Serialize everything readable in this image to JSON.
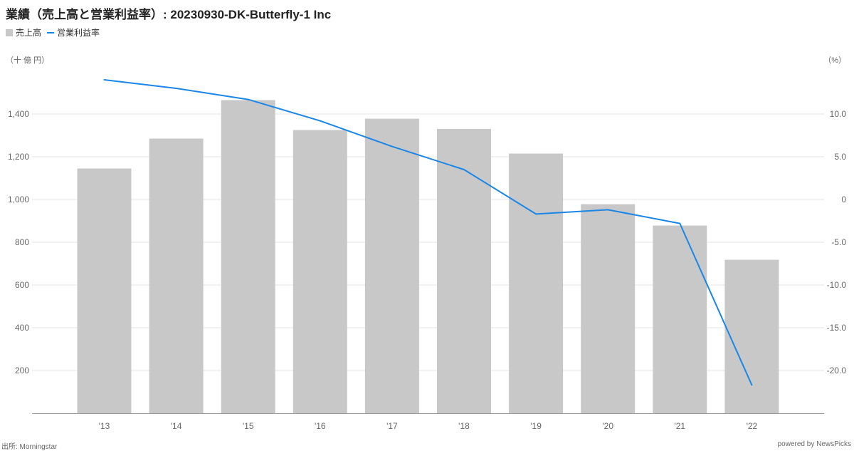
{
  "header": {
    "title": "業績（売上高と営業利益率）: 20230930-DK-Butterfly-1 Inc"
  },
  "footer": {
    "source": "出所: Morningstar",
    "credit": "powered by NewsPicks"
  },
  "colors": {
    "bar": "#c8c8c8",
    "line": "#1a86e8",
    "grid": "#e6e6e6",
    "axis": "#999999"
  },
  "chart_data": {
    "type": "bar+line",
    "categories": [
      "'13",
      "'14",
      "'15",
      "'16",
      "'17",
      "'18",
      "'19",
      "'20",
      "'21",
      "'22"
    ],
    "series": [
      {
        "name": "売上高",
        "type": "bar",
        "axis": "left",
        "values": [
          1145,
          1285,
          1465,
          1325,
          1378,
          1330,
          1215,
          978,
          878,
          718
        ]
      },
      {
        "name": "営業利益率",
        "type": "line",
        "axis": "right",
        "values": [
          14.0,
          13.0,
          11.7,
          9.2,
          6.2,
          3.5,
          -1.7,
          -1.2,
          -2.8,
          -21.7
        ]
      }
    ],
    "y_left": {
      "unit_label": "（十 億 円）",
      "range": [
        0,
        1600
      ],
      "ticks": [
        200,
        400,
        600,
        800,
        1000,
        1200,
        1400
      ],
      "tick_labels": [
        "200",
        "400",
        "600",
        "800",
        "1,000",
        "1,200",
        "1,400"
      ]
    },
    "y_right": {
      "unit_label": "（%）",
      "range": [
        -25,
        15
      ],
      "ticks": [
        -20,
        -15,
        -10,
        -5,
        0,
        5,
        10
      ],
      "tick_labels": [
        "-20.0",
        "-15.0",
        "-10.0",
        "-5.0",
        "0",
        "5.0",
        "10.0"
      ]
    },
    "grid": true,
    "legend_position": "top-left"
  }
}
